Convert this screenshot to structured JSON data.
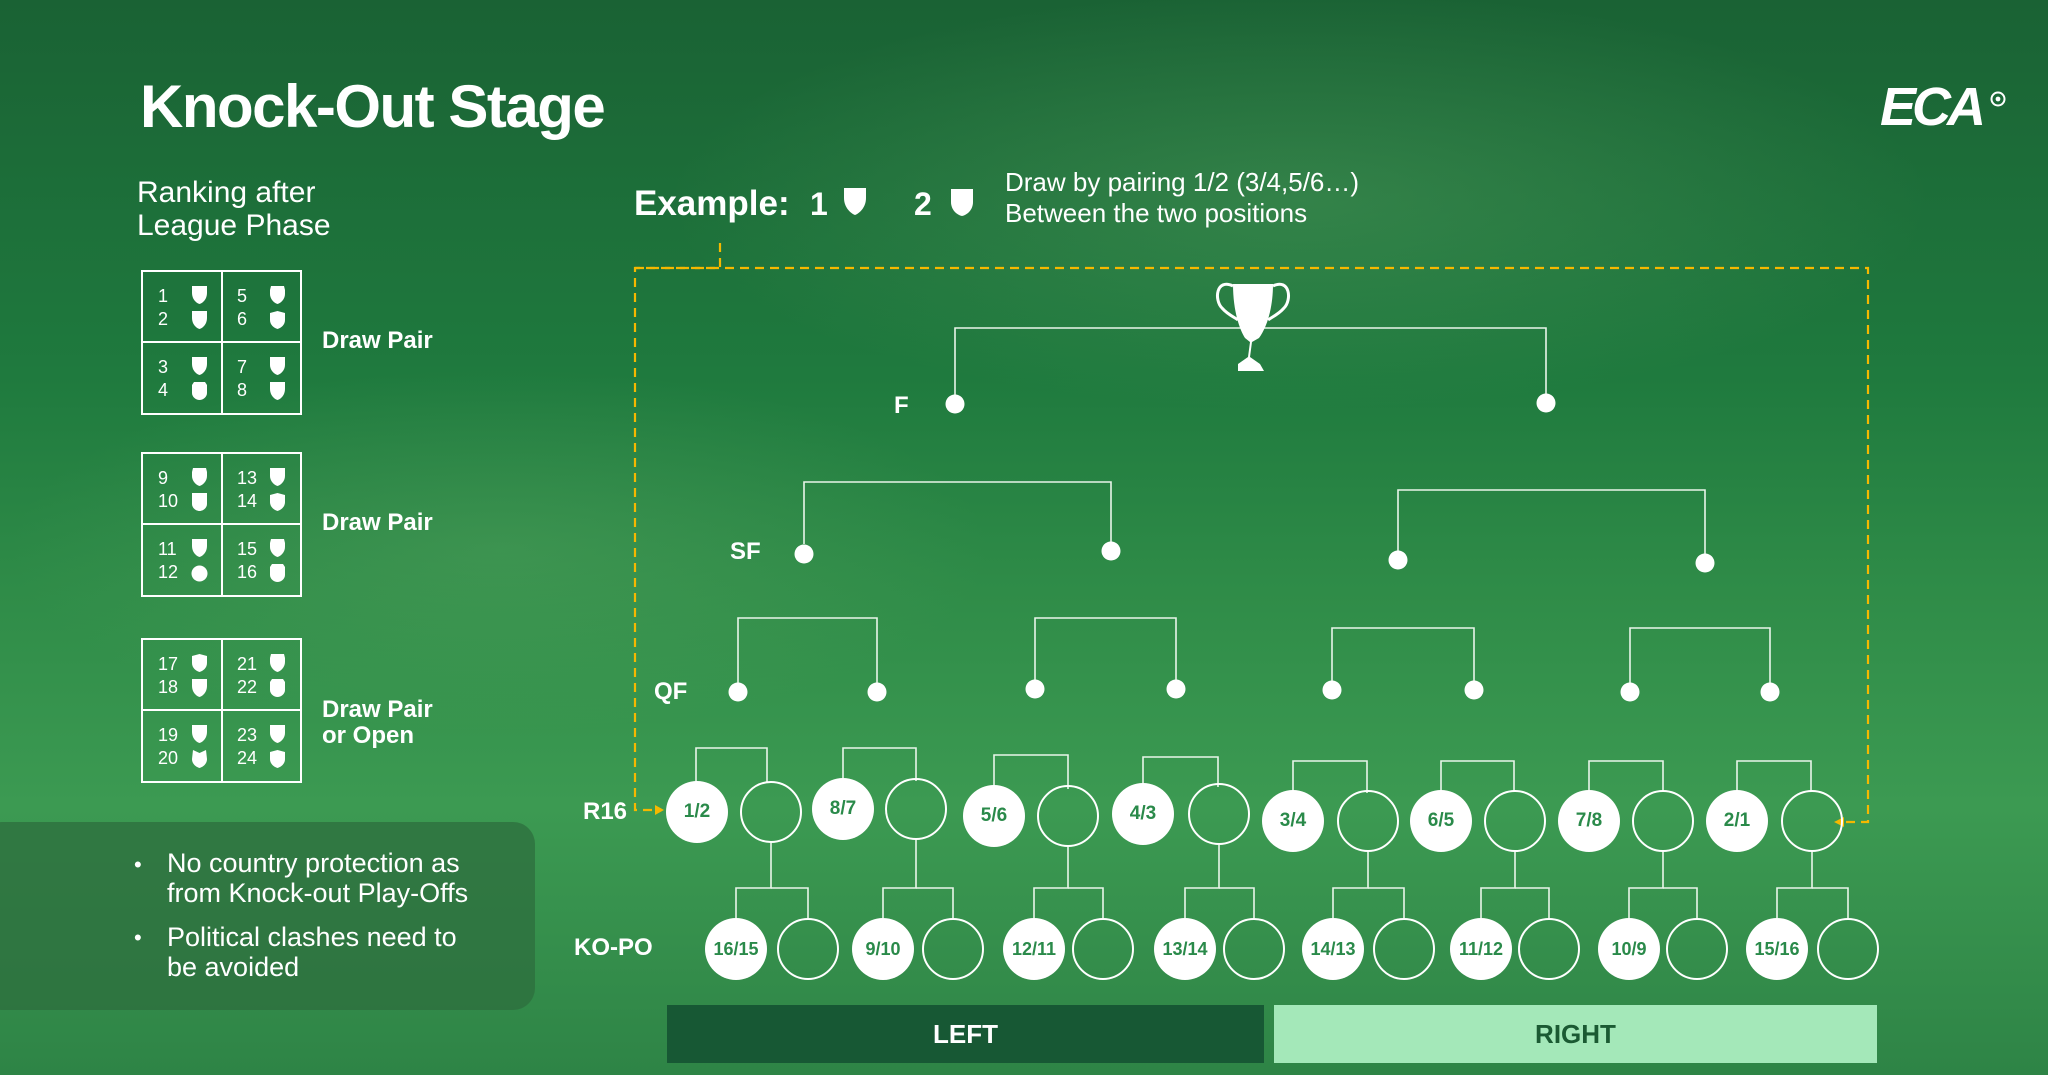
{
  "title": "Knock-Out Stage",
  "logo": "ECA",
  "ranking": {
    "title_line1": "Ranking after",
    "title_line2": "League Phase",
    "groups": [
      {
        "cells": [
          [
            "1",
            "2"
          ],
          [
            "5",
            "6"
          ],
          [
            "3",
            "4"
          ],
          [
            "7",
            "8"
          ]
        ],
        "label_line1": "Draw Pair",
        "label_line2": ""
      },
      {
        "cells": [
          [
            "9",
            "10"
          ],
          [
            "13",
            "14"
          ],
          [
            "11",
            "12"
          ],
          [
            "15",
            "16"
          ]
        ],
        "label_line1": "Draw Pair",
        "label_line2": ""
      },
      {
        "cells": [
          [
            "17",
            "18"
          ],
          [
            "21",
            "22"
          ],
          [
            "19",
            "20"
          ],
          [
            "23",
            "24"
          ]
        ],
        "label_line1": "Draw Pair",
        "label_line2": "or Open"
      }
    ]
  },
  "example": {
    "label": "Example:",
    "num1": "1",
    "num2": "2",
    "desc_line1": "Draw by pairing 1/2 (3/4,5/6…)",
    "desc_line2": "Between the two positions"
  },
  "stages": {
    "final": "F",
    "semi": "SF",
    "quarter": "QF",
    "r16": "R16",
    "kopo": "KO-PO"
  },
  "r16_pairs": [
    "1/2",
    "8/7",
    "5/6",
    "4/3",
    "3/4",
    "6/5",
    "7/8",
    "2/1"
  ],
  "kopo_pairs": [
    "16/15",
    "9/10",
    "12/11",
    "13/14",
    "14/13",
    "11/12",
    "10/9",
    "15/16"
  ],
  "notes": [
    "No country protection as from Knock-out Play-Offs",
    "Political clashes need to be avoided"
  ],
  "notes_lines": [
    [
      "No country protection as",
      "from Knock-out Play-Offs"
    ],
    [
      "Political clashes need to",
      "be avoided"
    ]
  ],
  "bullet": "•",
  "sides": {
    "left": "LEFT",
    "right": "RIGHT"
  },
  "colors": {
    "accent_dashed": "#f5b800",
    "node_text": "#2a8a4a",
    "left_bar": "#175834",
    "right_bar": "#a4e8b9"
  }
}
